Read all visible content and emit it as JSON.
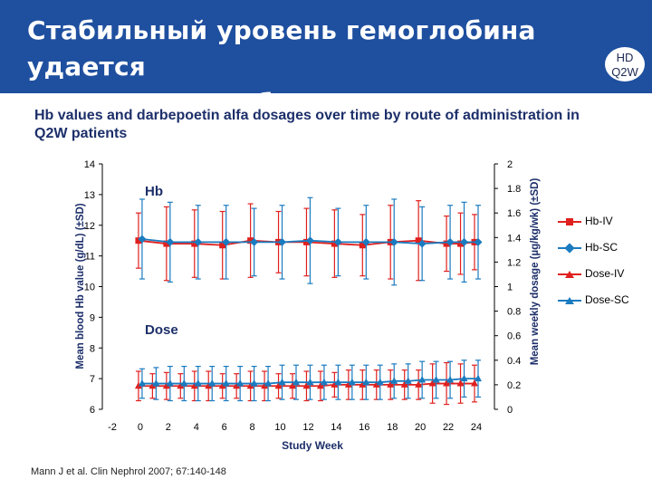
{
  "slide": {
    "title_line1": "Стабильный уровень гемоглобина удается",
    "title_line2": "поддерживать без изменения доз",
    "badge_line1": "HD",
    "badge_line2": "Q2W",
    "citation": "Mann J et al. Clin Nephrol 2007; 67:140-148",
    "header_color": "#1f4f9f"
  },
  "chart_data": {
    "type": "line",
    "title": "Hb values and darbepoetin alfa dosages over time by route of administration in Q2W patients",
    "xlabel": "Study Week",
    "ylabel_left": "Mean blood Hb value (g/dL) (±SD)",
    "ylabel_right": "Mean weekly dosage (µg/kg/wk) (±SD)",
    "x_ticks": [
      -2,
      0,
      2,
      4,
      6,
      8,
      10,
      12,
      14,
      16,
      18,
      20,
      22,
      24
    ],
    "xlim": [
      -2,
      24
    ],
    "ylim_left": [
      6,
      14
    ],
    "y_ticks_left": [
      6,
      7,
      8,
      9,
      10,
      11,
      12,
      13,
      14
    ],
    "ylim_right": [
      0,
      2
    ],
    "y_ticks_right": [
      "0",
      "0.2",
      "0.4",
      "0.6",
      "0.8",
      "1",
      "1.2",
      "1.4",
      "1.6",
      "1.8",
      "2"
    ],
    "annotations": {
      "hb": "Hb",
      "dose": "Dose"
    },
    "legend_position": "right",
    "series": [
      {
        "name": "Hb-IV",
        "axis": "left",
        "color": "#e0201e",
        "marker": "square",
        "x": [
          0,
          2,
          4,
          6,
          8,
          10,
          12,
          14,
          16,
          18,
          20,
          22,
          23,
          24
        ],
        "values": [
          11.5,
          11.4,
          11.4,
          11.35,
          11.5,
          11.45,
          11.45,
          11.4,
          11.35,
          11.45,
          11.5,
          11.4,
          11.4,
          11.45
        ],
        "sd": [
          0.9,
          1.2,
          1.1,
          1.1,
          1.2,
          1.0,
          1.1,
          1.1,
          1.0,
          1.2,
          1.3,
          0.9,
          1.0,
          0.9
        ]
      },
      {
        "name": "Hb-SC",
        "axis": "left",
        "color": "#1a7bc0",
        "marker": "diamond",
        "x": [
          0,
          2,
          4,
          6,
          8,
          10,
          12,
          14,
          16,
          18,
          20,
          22,
          23,
          24
        ],
        "values": [
          11.55,
          11.45,
          11.45,
          11.45,
          11.45,
          11.45,
          11.5,
          11.45,
          11.45,
          11.45,
          11.4,
          11.45,
          11.45,
          11.45
        ],
        "sd": [
          1.3,
          1.3,
          1.2,
          1.2,
          1.1,
          1.2,
          1.4,
          1.1,
          1.2,
          1.4,
          1.2,
          1.2,
          1.3,
          1.2
        ]
      },
      {
        "name": "Dose-IV",
        "axis": "right",
        "color": "#e0201e",
        "marker": "triangle",
        "x": [
          0,
          1,
          2,
          3,
          4,
          5,
          6,
          7,
          8,
          9,
          10,
          11,
          12,
          13,
          14,
          15,
          16,
          17,
          18,
          19,
          20,
          21,
          22,
          23,
          24
        ],
        "values": [
          0.19,
          0.19,
          0.19,
          0.19,
          0.19,
          0.19,
          0.19,
          0.19,
          0.19,
          0.19,
          0.19,
          0.19,
          0.19,
          0.19,
          0.2,
          0.2,
          0.2,
          0.2,
          0.2,
          0.2,
          0.2,
          0.21,
          0.21,
          0.21,
          0.21
        ],
        "sd": [
          0.12,
          0.1,
          0.11,
          0.1,
          0.12,
          0.12,
          0.1,
          0.1,
          0.12,
          0.12,
          0.1,
          0.1,
          0.12,
          0.12,
          0.1,
          0.12,
          0.12,
          0.12,
          0.12,
          0.12,
          0.12,
          0.16,
          0.17,
          0.16,
          0.15
        ]
      },
      {
        "name": "Dose-SC",
        "axis": "right",
        "color": "#1a7bc0",
        "marker": "triangle",
        "x": [
          0,
          1,
          2,
          3,
          4,
          5,
          6,
          7,
          8,
          9,
          10,
          11,
          12,
          13,
          14,
          15,
          16,
          17,
          18,
          19,
          20,
          21,
          22,
          23,
          24
        ],
        "values": [
          0.21,
          0.21,
          0.21,
          0.21,
          0.21,
          0.21,
          0.21,
          0.21,
          0.21,
          0.21,
          0.22,
          0.22,
          0.22,
          0.22,
          0.22,
          0.22,
          0.22,
          0.22,
          0.23,
          0.23,
          0.24,
          0.24,
          0.24,
          0.25,
          0.25
        ],
        "sd": [
          0.12,
          0.13,
          0.14,
          0.14,
          0.14,
          0.14,
          0.14,
          0.14,
          0.14,
          0.14,
          0.14,
          0.14,
          0.14,
          0.14,
          0.14,
          0.14,
          0.14,
          0.14,
          0.14,
          0.14,
          0.15,
          0.15,
          0.15,
          0.15,
          0.15
        ]
      }
    ]
  }
}
